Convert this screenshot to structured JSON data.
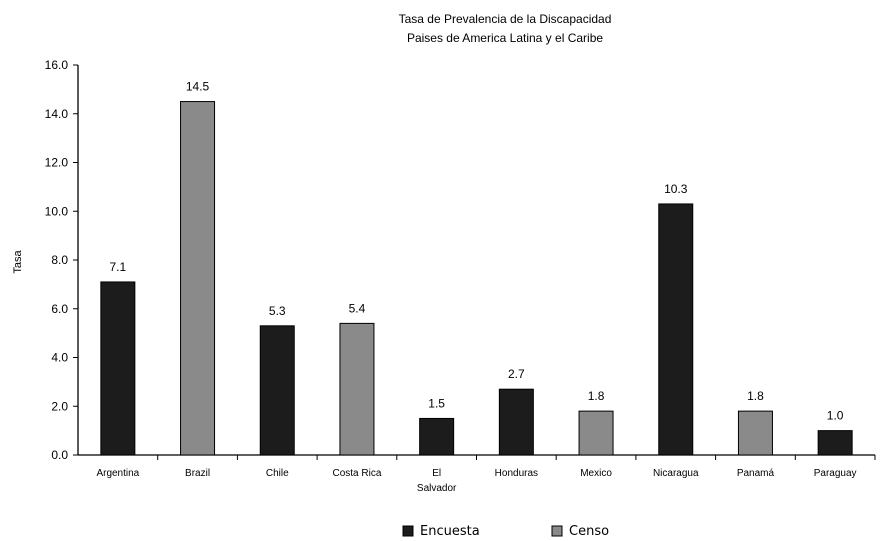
{
  "chart_data": {
    "type": "bar",
    "title": "Tasa de Prevalencia de la Discapacidad",
    "subtitle": "Paises de America Latina y el Caribe",
    "xlabel": "",
    "ylabel": "Tasa",
    "ylim": [
      0,
      16
    ],
    "yticks": [
      "0.0",
      "2.0",
      "4.0",
      "6.0",
      "8.0",
      "10.0",
      "12.0",
      "14.0",
      "16.0"
    ],
    "categories": [
      "Argentina",
      "Brazil",
      "Chile",
      "Costa Rica",
      "El Salvador",
      "Honduras",
      "Mexico",
      "Nicaragua",
      "Panamá",
      "Paraguay"
    ],
    "values": [
      7.1,
      14.5,
      5.3,
      5.4,
      1.5,
      2.7,
      1.8,
      10.3,
      1.8,
      1.0
    ],
    "value_labels": [
      "7.1",
      "14.5",
      "5.3",
      "5.4",
      "1.5",
      "2.7",
      "1.8",
      "10.3",
      "1.8",
      "1.0"
    ],
    "bar_series": [
      "Encuesta",
      "Censo",
      "Encuesta",
      "Censo",
      "Encuesta",
      "Encuesta",
      "Censo",
      "Encuesta",
      "Censo",
      "Encuesta"
    ],
    "series": [
      {
        "name": "Encuesta",
        "color": "#1c1c1c"
      },
      {
        "name": "Censo",
        "color": "#8a8a8a"
      }
    ],
    "grid": false,
    "legend_position": "bottom-center"
  }
}
